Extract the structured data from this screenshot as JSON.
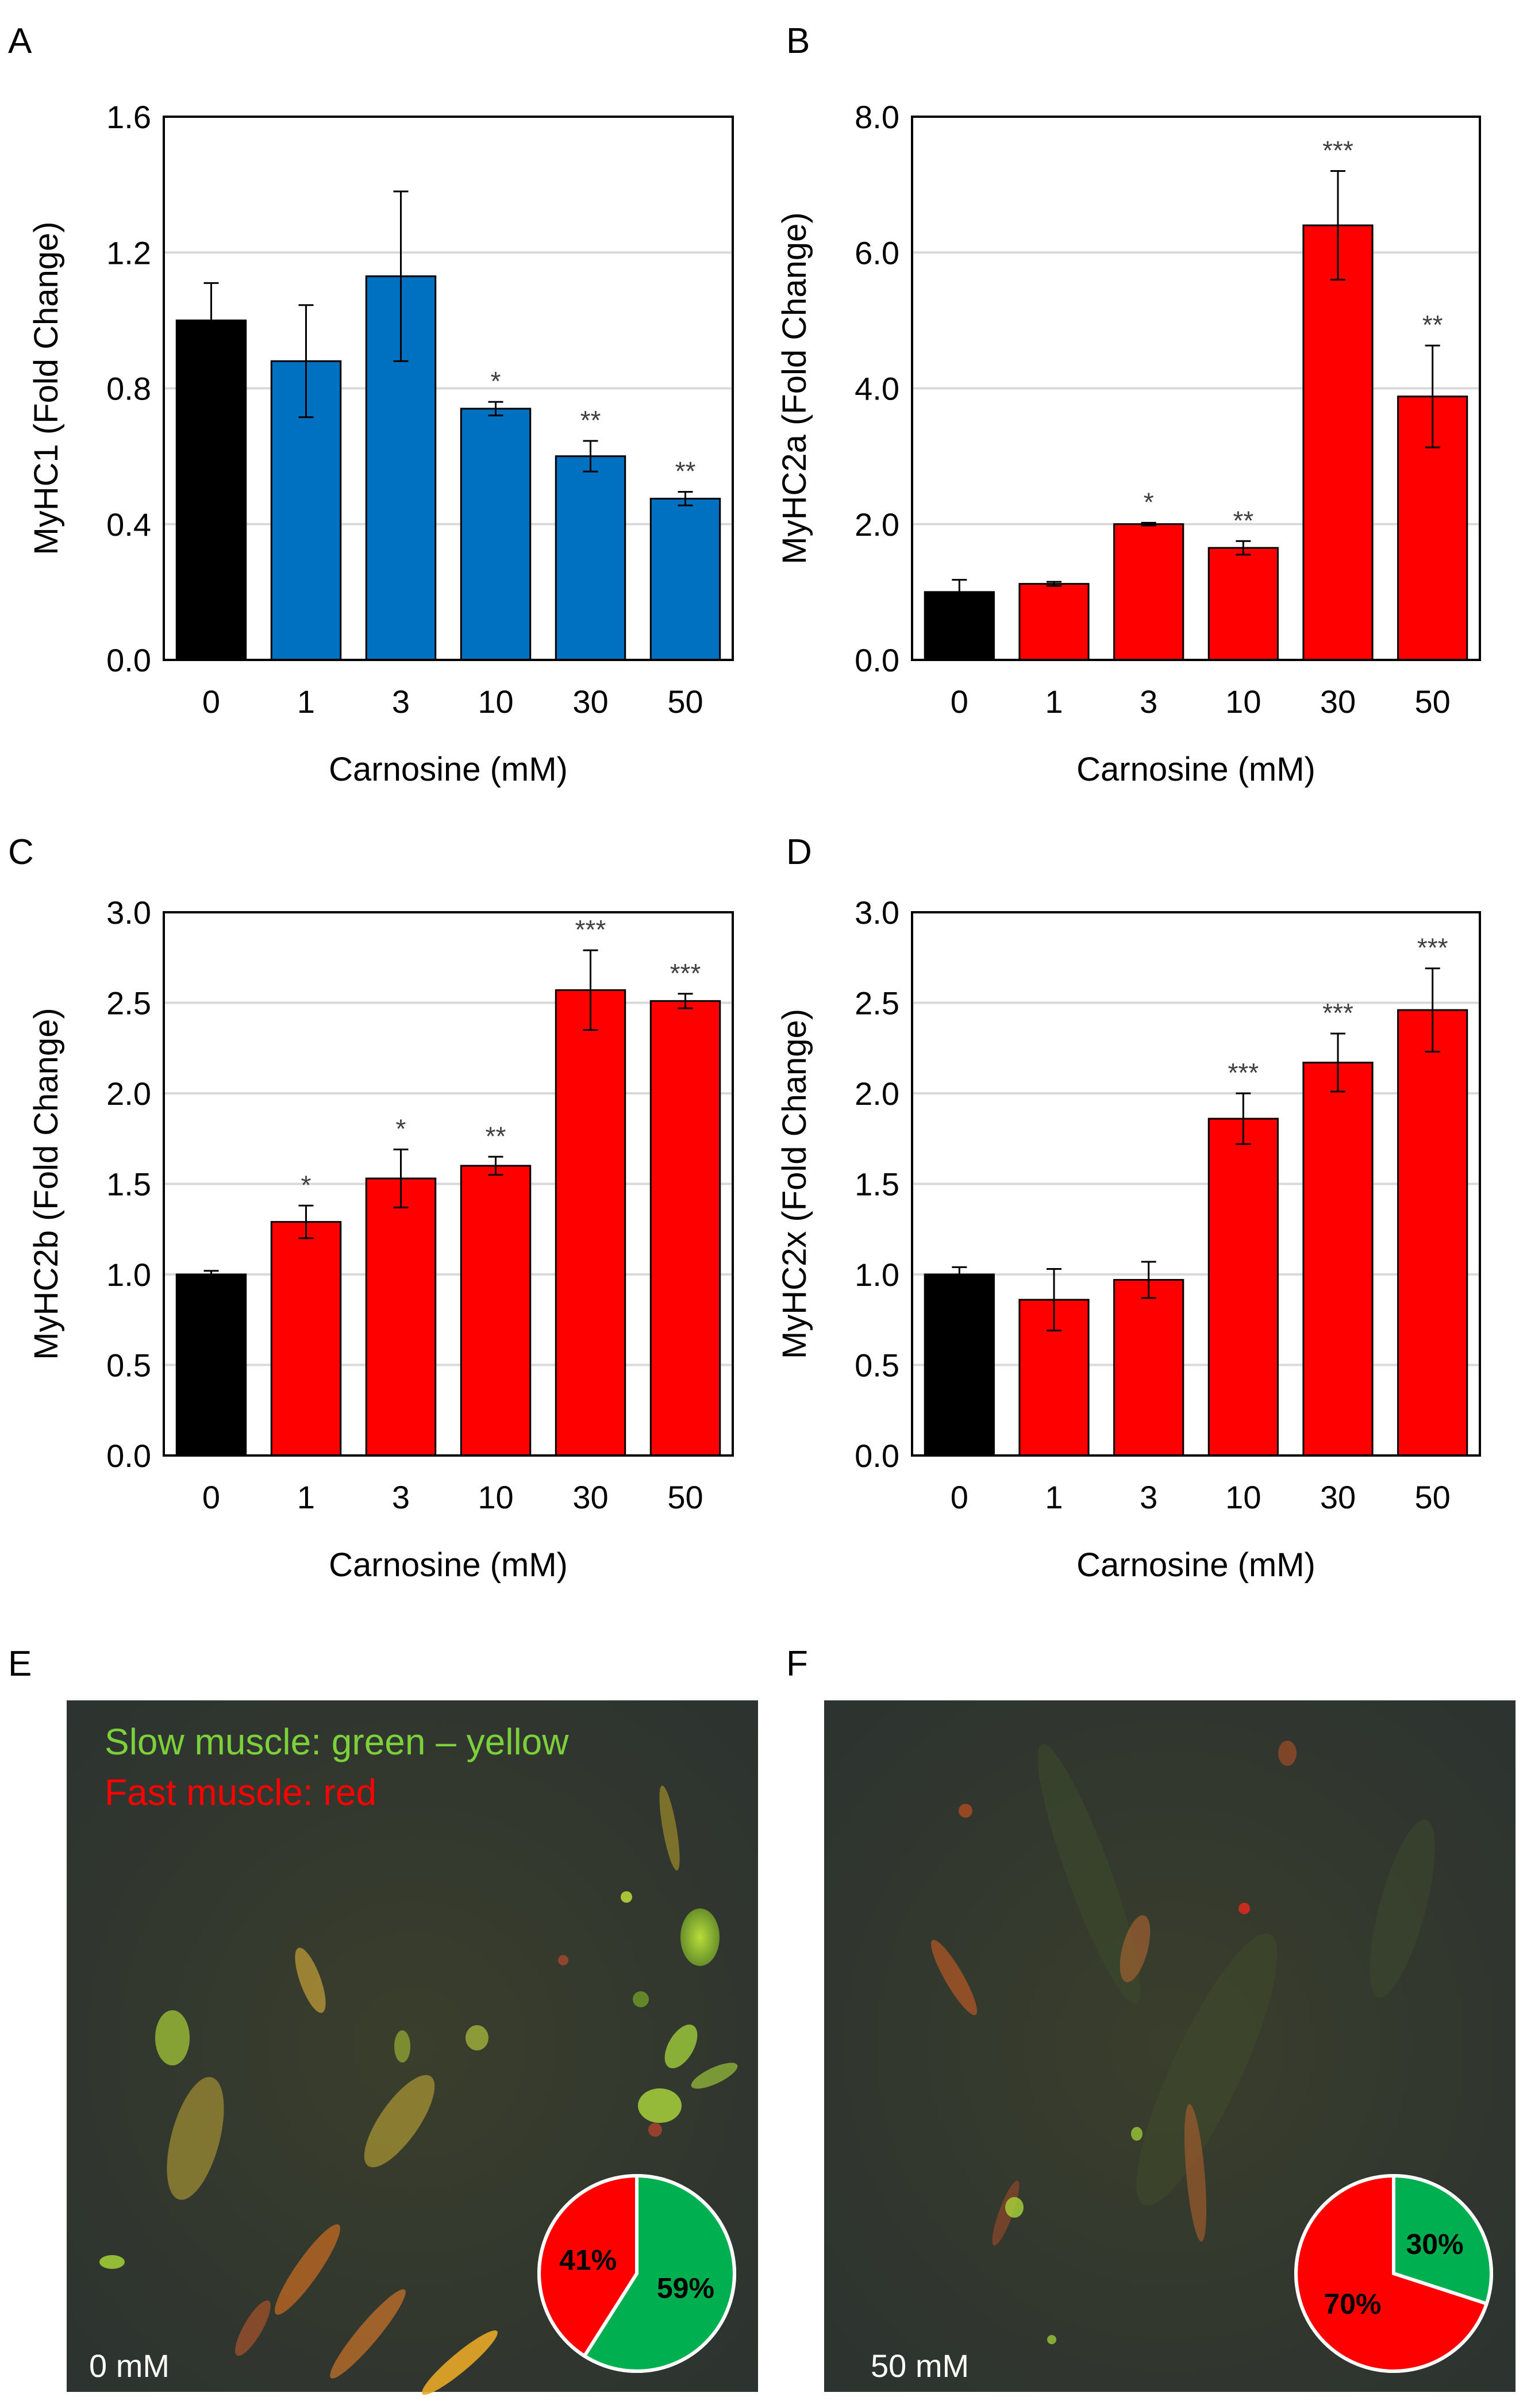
{
  "figure": {
    "colors": {
      "control": "#000000",
      "blue": "#0070c0",
      "red": "#ff0000",
      "grid": "#d9d9d9",
      "slow": "#00b050",
      "fast": "#ff0000"
    }
  },
  "chart_data": [
    {
      "panel": "A",
      "type": "bar",
      "categories": [
        "0",
        "1",
        "3",
        "10",
        "30",
        "50"
      ],
      "values": [
        1.0,
        0.88,
        1.13,
        0.74,
        0.6,
        0.475
      ],
      "errors": [
        0.11,
        0.165,
        0.25,
        0.02,
        0.045,
        0.02
      ],
      "significance": [
        "",
        "",
        "",
        "*",
        "**",
        "**"
      ],
      "bar_colors": [
        "#000000",
        "#0070c0",
        "#0070c0",
        "#0070c0",
        "#0070c0",
        "#0070c0"
      ],
      "ylim": [
        0,
        1.6
      ],
      "yticks": [
        "0.0",
        "0.4",
        "0.8",
        "1.2",
        "1.6"
      ],
      "ylabel": "MyHC1 (Fold Change)",
      "xlabel": "Carnosine (mM)",
      "grid": true
    },
    {
      "panel": "B",
      "type": "bar",
      "categories": [
        "0",
        "1",
        "3",
        "10",
        "30",
        "50"
      ],
      "values": [
        1.0,
        1.12,
        2.0,
        1.65,
        6.4,
        3.88
      ],
      "errors": [
        0.18,
        0.03,
        0.02,
        0.1,
        0.8,
        0.75
      ],
      "significance": [
        "",
        "",
        "*",
        "**",
        "***",
        "**"
      ],
      "bar_colors": [
        "#000000",
        "#ff0000",
        "#ff0000",
        "#ff0000",
        "#ff0000",
        "#ff0000"
      ],
      "ylim": [
        0,
        8.0
      ],
      "yticks": [
        "0.0",
        "2.0",
        "4.0",
        "6.0",
        "8.0"
      ],
      "ylabel": "MyHC2a (Fold Change)",
      "xlabel": "Carnosine (mM)",
      "grid": true
    },
    {
      "panel": "C",
      "type": "bar",
      "categories": [
        "0",
        "1",
        "3",
        "10",
        "30",
        "50"
      ],
      "values": [
        1.0,
        1.29,
        1.53,
        1.6,
        2.57,
        2.51
      ],
      "errors": [
        0.02,
        0.09,
        0.16,
        0.05,
        0.22,
        0.04
      ],
      "significance": [
        "",
        "*",
        "*",
        "**",
        "***",
        "***"
      ],
      "bar_colors": [
        "#000000",
        "#ff0000",
        "#ff0000",
        "#ff0000",
        "#ff0000",
        "#ff0000"
      ],
      "ylim": [
        0,
        3.0
      ],
      "yticks": [
        "0.0",
        "0.5",
        "1.0",
        "1.5",
        "2.0",
        "2.5",
        "3.0"
      ],
      "ylabel": "MyHC2b (Fold Change)",
      "xlabel": "Carnosine (mM)",
      "grid": true
    },
    {
      "panel": "D",
      "type": "bar",
      "categories": [
        "0",
        "1",
        "3",
        "10",
        "30",
        "50"
      ],
      "values": [
        1.0,
        0.86,
        0.97,
        1.86,
        2.17,
        2.46
      ],
      "errors": [
        0.04,
        0.17,
        0.1,
        0.14,
        0.16,
        0.23
      ],
      "significance": [
        "",
        "",
        "",
        "***",
        "***",
        "***"
      ],
      "bar_colors": [
        "#000000",
        "#ff0000",
        "#ff0000",
        "#ff0000",
        "#ff0000",
        "#ff0000"
      ],
      "ylim": [
        0,
        3.0
      ],
      "yticks": [
        "0.0",
        "0.5",
        "1.0",
        "1.5",
        "2.0",
        "2.5",
        "3.0"
      ],
      "ylabel": "MyHC2x (Fold Change)",
      "xlabel": "Carnosine (mM)",
      "grid": true
    },
    {
      "panel": "E",
      "type": "pie",
      "slices": [
        {
          "label": "59%",
          "value": 59,
          "color": "#00b050"
        },
        {
          "label": "41%",
          "value": 41,
          "color": "#ff0000"
        }
      ]
    },
    {
      "panel": "F",
      "type": "pie",
      "slices": [
        {
          "label": "30%",
          "value": 30,
          "color": "#00b050"
        },
        {
          "label": "70%",
          "value": 70,
          "color": "#ff0000"
        }
      ]
    }
  ],
  "panels": {
    "A": {
      "letter": "A"
    },
    "B": {
      "letter": "B"
    },
    "C": {
      "letter": "C"
    },
    "D": {
      "letter": "D"
    },
    "E": {
      "letter": "E",
      "legend_slow": "Slow muscle: green – yellow",
      "legend_fast": "Fast muscle: red",
      "concentration": "0 mM"
    },
    "F": {
      "letter": "F",
      "concentration": "50 mM"
    }
  }
}
